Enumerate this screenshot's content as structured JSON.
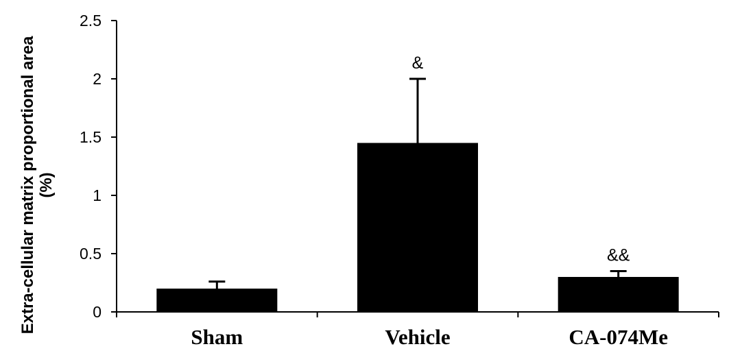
{
  "chart_data": {
    "type": "bar",
    "categories": [
      "Sham",
      "Vehicle",
      "CA-074Me"
    ],
    "values": [
      0.2,
      1.45,
      0.3
    ],
    "error_upper": [
      0.26,
      2.0,
      0.35
    ],
    "annotations": [
      "",
      "&",
      "&&"
    ],
    "ylabel_lines": [
      "Extra-cellular matrix proportional area",
      "(%)"
    ],
    "ylim": [
      0,
      2.5
    ],
    "yticks": [
      0,
      0.5,
      1,
      1.5,
      2,
      2.5
    ],
    "ytick_labels": [
      "0",
      "0.5",
      "1",
      "1.5",
      "2",
      "2.5"
    ],
    "grid": false,
    "bar_color": "#000000"
  }
}
